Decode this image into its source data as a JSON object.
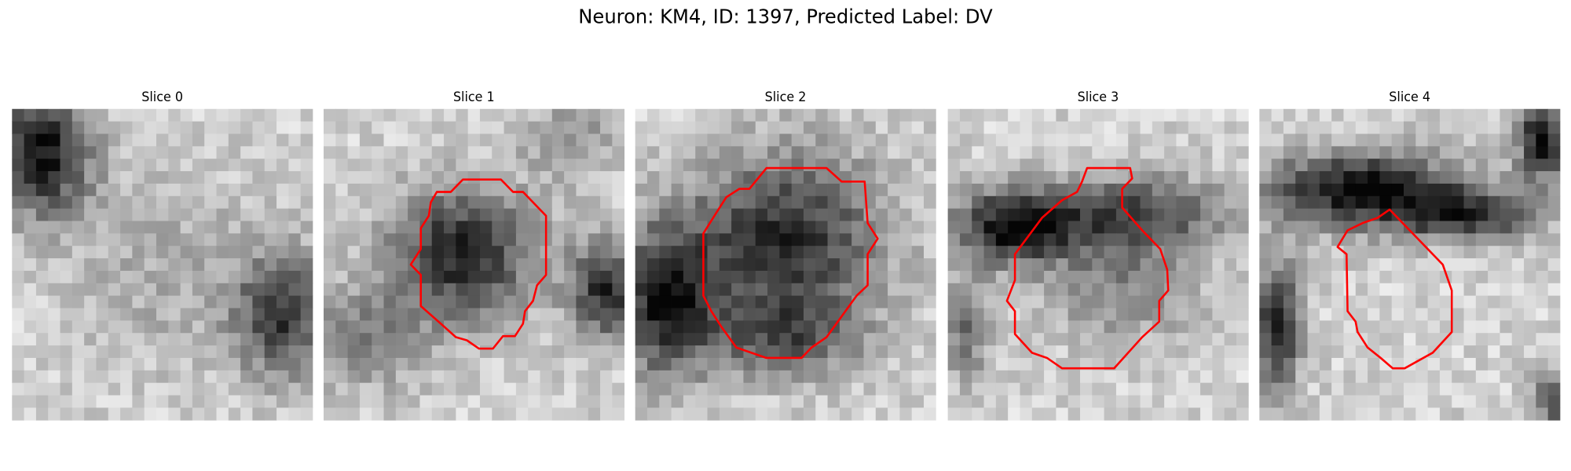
{
  "title": "Neuron: KM4, ID: 1397, Predicted Label: DV",
  "panels": [
    {
      "title": "Slice 0"
    },
    {
      "title": "Slice 1"
    },
    {
      "title": "Slice 2"
    },
    {
      "title": "Slice 3"
    },
    {
      "title": "Slice 4"
    }
  ]
}
